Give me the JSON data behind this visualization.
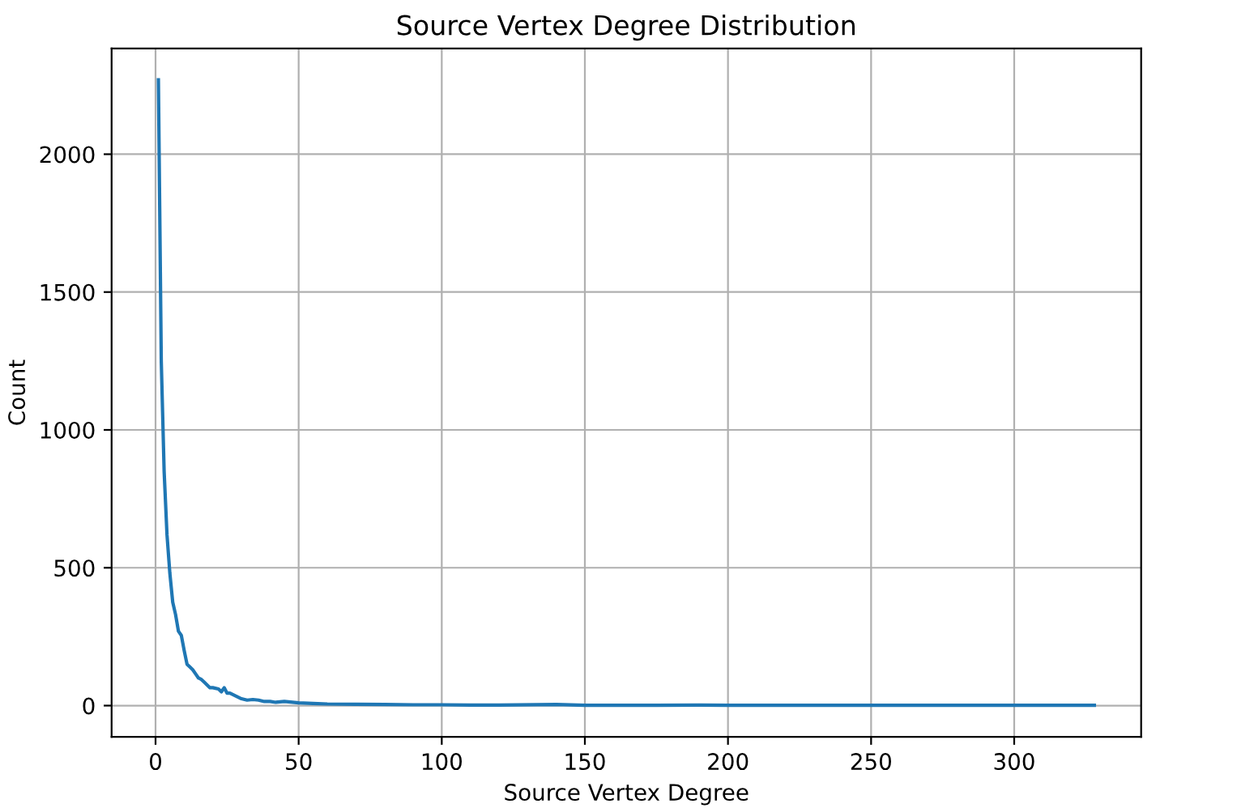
{
  "chart_data": {
    "type": "line",
    "title": "Source Vertex Degree Distribution",
    "xlabel": "Source Vertex Degree",
    "ylabel": "Count",
    "series": [
      {
        "color": "#1f77b4",
        "x": [
          1,
          2,
          3,
          4,
          5,
          6,
          7,
          8,
          9,
          10,
          11,
          12,
          13,
          14,
          15,
          16,
          17,
          18,
          19,
          20,
          22,
          23,
          24,
          25,
          26,
          28,
          30,
          32,
          34,
          36,
          38,
          40,
          42,
          45,
          50,
          55,
          60,
          70,
          80,
          90,
          100,
          110,
          120,
          140,
          150,
          175,
          190,
          200,
          250,
          300,
          328
        ],
        "values": [
          2270,
          1250,
          850,
          620,
          480,
          375,
          330,
          270,
          255,
          200,
          150,
          140,
          130,
          115,
          100,
          95,
          85,
          75,
          65,
          65,
          60,
          50,
          65,
          45,
          45,
          35,
          25,
          20,
          22,
          20,
          15,
          15,
          12,
          15,
          10,
          8,
          6,
          5,
          4,
          3,
          3,
          2,
          2,
          4,
          1,
          1,
          2,
          1,
          1,
          1,
          1
        ]
      }
    ],
    "xlim": [
      -15.35,
      344.35
    ],
    "ylim": [
      -113.5,
      2383.5
    ],
    "xticks": [
      0,
      50,
      100,
      150,
      200,
      250,
      300
    ],
    "yticks": [
      0,
      500,
      1000,
      1500,
      2000
    ],
    "grid": true
  }
}
